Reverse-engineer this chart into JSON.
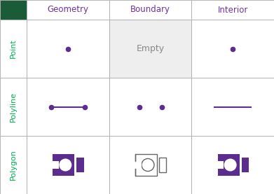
{
  "title_bg_color": "#1a5c38",
  "header_text_color": "#7030a0",
  "row_label_color": "#00b050",
  "grid_line_color": "#aaaaaa",
  "boundary_bg_color": "#eeeeee",
  "empty_text_color": "#888888",
  "purple": "#5b2d8e",
  "purple_fill": "#5b2d8e",
  "outline_color": "#666666",
  "headers": [
    "Geometry",
    "Boundary",
    "Interior"
  ],
  "row_labels": [
    "Point",
    "Polyline",
    "Polygon"
  ],
  "fig_width": 3.91,
  "fig_height": 2.77,
  "dpi": 100
}
